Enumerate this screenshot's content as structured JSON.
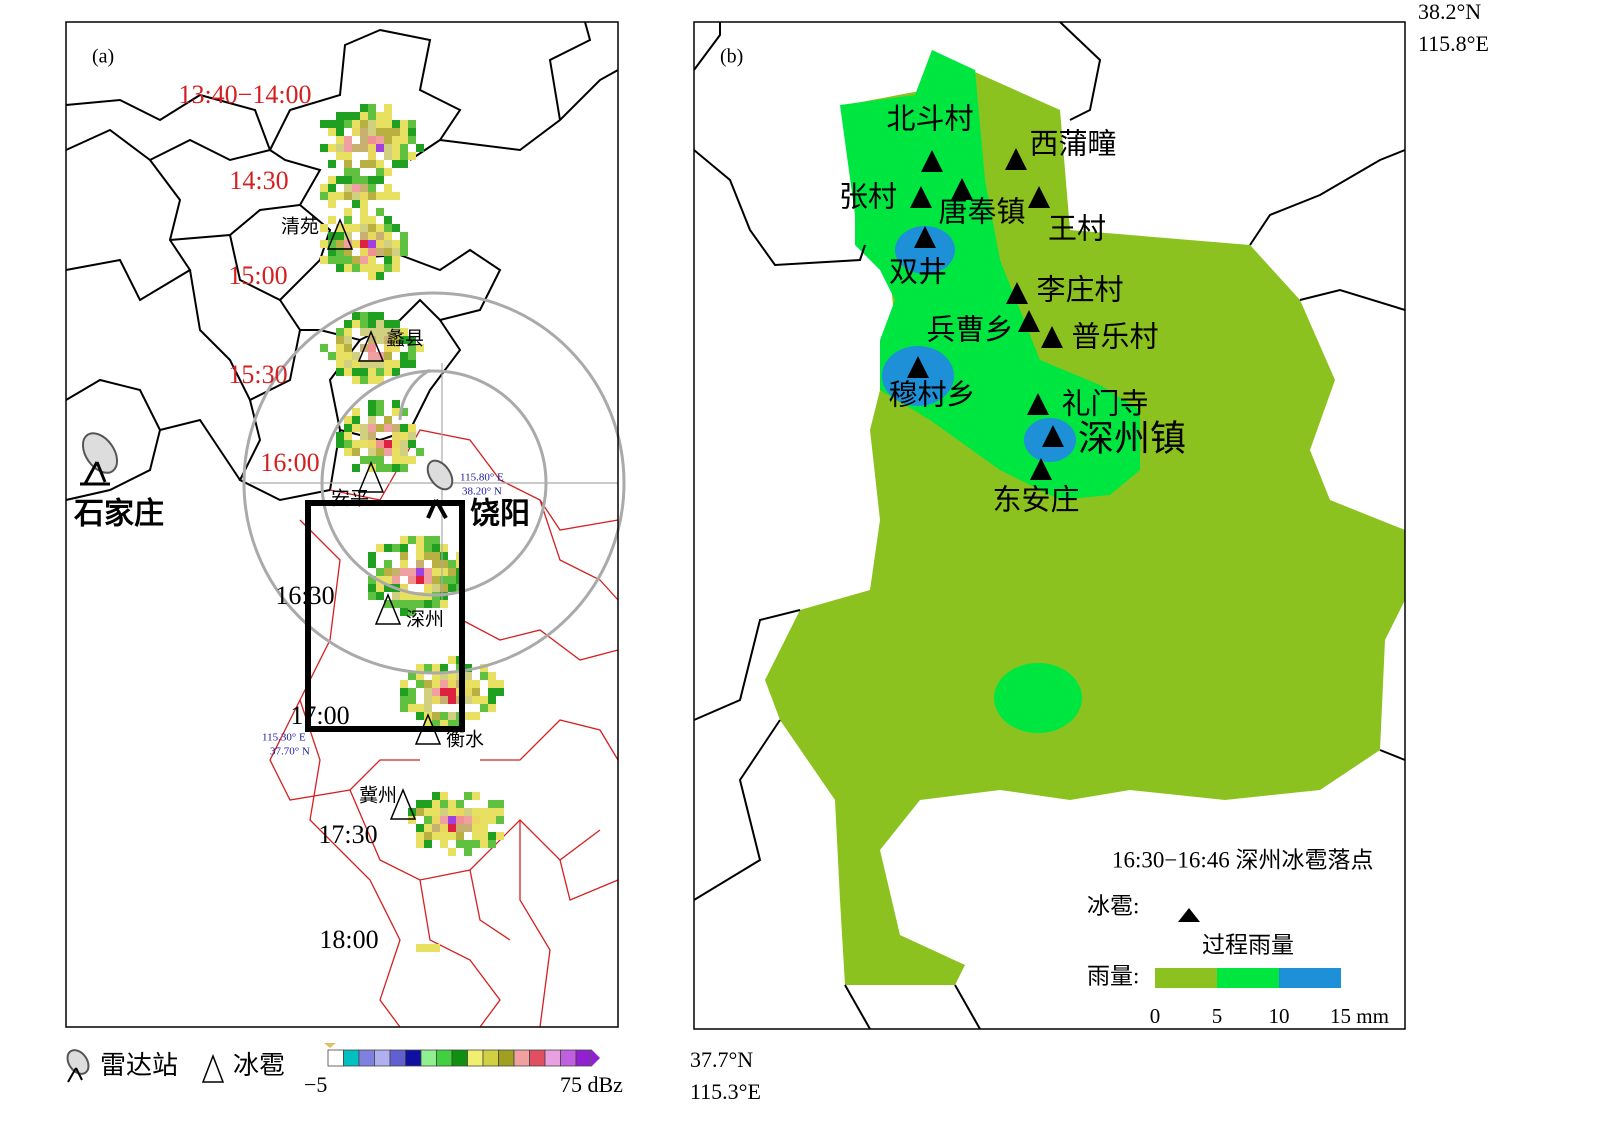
{
  "panel_a": {
    "label": "(a)",
    "times": [
      "13:40−14:00",
      "14:30",
      "15:00",
      "15:30",
      "16:00",
      "16:30",
      "17:00",
      "17:30",
      "18:00"
    ],
    "stations": [
      "清苑",
      "蠡县",
      "安平",
      "深州",
      "衡水",
      "冀州"
    ],
    "radars": [
      "石家庄",
      "饶阳"
    ],
    "coords": {
      "ne_lon": "115.80° E",
      "ne_lat": "38.20° N",
      "sw_lon": "115.30° E",
      "sw_lat": "37.70° N"
    }
  },
  "legend_a": {
    "radar": "雷达站",
    "hail": "冰雹",
    "min": "−5",
    "max": "75 dBz"
  },
  "panel_b": {
    "label": "(b)",
    "places": [
      "北斗村",
      "西蒲疃",
      "张村",
      "唐奉镇",
      "王村",
      "双井",
      "李庄村",
      "兵曹乡",
      "普乐村",
      "穆村乡",
      "礼门寺",
      "深州镇",
      "东安庄"
    ],
    "caption": "16:30−16:46 深州冰雹落点",
    "hail_label": "冰雹:",
    "rain_title": "过程雨量",
    "rain_label": "雨量:",
    "rain_ticks": [
      "0",
      "5",
      "10",
      "15 mm"
    ]
  },
  "corners": {
    "top_lat": "38.2°N",
    "top_lon": "115.8°E",
    "bottom_lat": "37.7°N",
    "bottom_lon": "115.3°E"
  }
}
